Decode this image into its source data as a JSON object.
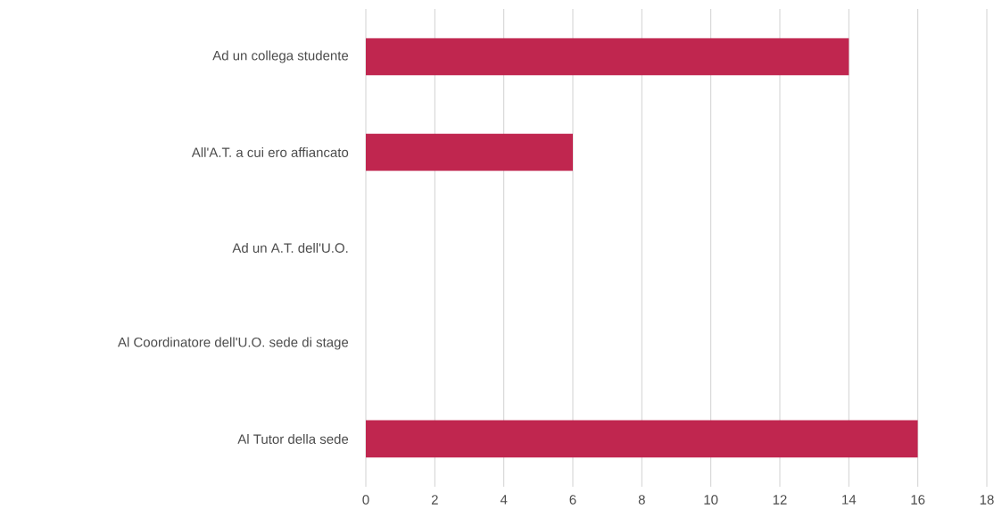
{
  "chart_data": {
    "type": "bar",
    "orientation": "horizontal",
    "categories": [
      "Ad un collega studente",
      "All'A.T. a cui ero affiancato",
      "Ad un A.T. dell'U.O.",
      "Al Coordinatore dell'U.O. sede di stage",
      "Al Tutor della sede"
    ],
    "values": [
      14,
      6,
      0,
      0,
      16
    ],
    "color": "#c0264f",
    "xlim": [
      0,
      18
    ],
    "xticks": [
      0,
      2,
      4,
      6,
      8,
      10,
      12,
      14,
      16,
      18
    ],
    "grid": "x"
  }
}
